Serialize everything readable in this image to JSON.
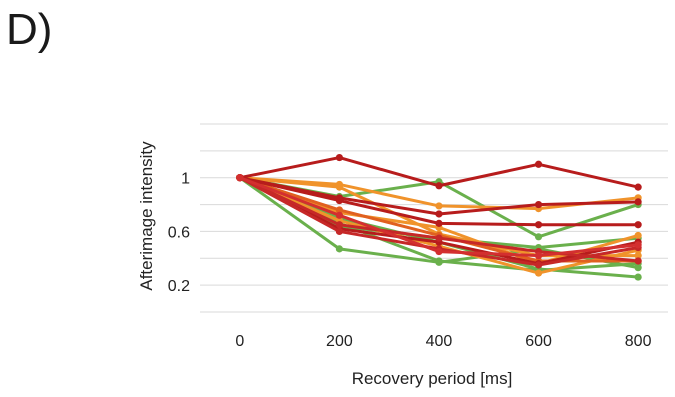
{
  "panel_label": "D)",
  "chart_data": {
    "type": "line",
    "title": "",
    "xlabel": "Recovery period [ms]",
    "ylabel": "Afterimage intensity",
    "x": [
      0,
      200,
      400,
      600,
      800
    ],
    "xticks": [
      "0",
      "200",
      "400",
      "600",
      "800"
    ],
    "yticks": [
      {
        "value": 0.2,
        "label": "0.2"
      },
      {
        "value": 0.6,
        "label": "0.6"
      },
      {
        "value": 1.0,
        "label": "1"
      }
    ],
    "xlim": [
      -80,
      860
    ],
    "ylim": [
      0.0,
      1.4
    ],
    "grid": true,
    "gridlines": [
      0.2,
      0.4,
      0.6,
      0.8,
      1.0,
      1.2,
      1.4
    ],
    "legend": "none",
    "series": [
      {
        "color": "#6ab04c",
        "values": [
          1.0,
          0.47,
          0.37,
          0.47,
          0.33
        ]
      },
      {
        "color": "#6ab04c",
        "values": [
          1.0,
          0.7,
          0.52,
          0.32,
          0.26
        ]
      },
      {
        "color": "#6ab04c",
        "values": [
          1.0,
          0.66,
          0.38,
          0.31,
          0.36
        ]
      },
      {
        "color": "#6ab04c",
        "values": [
          1.0,
          0.86,
          0.97,
          0.56,
          0.8
        ]
      },
      {
        "color": "#6ab04c",
        "values": [
          1.0,
          0.64,
          0.55,
          0.48,
          0.55
        ]
      },
      {
        "color": "#f0932b",
        "values": [
          1.0,
          0.95,
          0.79,
          0.77,
          0.85
        ]
      },
      {
        "color": "#f0932b",
        "values": [
          1.0,
          0.74,
          0.63,
          0.36,
          0.57
        ]
      },
      {
        "color": "#f0932b",
        "values": [
          1.0,
          0.68,
          0.49,
          0.29,
          0.46
        ]
      },
      {
        "color": "#f0932b",
        "values": [
          1.0,
          0.93,
          0.58,
          0.42,
          0.42
        ]
      },
      {
        "color": "#e06020",
        "values": [
          1.0,
          0.76,
          0.57,
          0.38,
          0.38
        ]
      },
      {
        "color": "#b71c1c",
        "values": [
          1.0,
          1.15,
          0.94,
          1.1,
          0.93
        ]
      },
      {
        "color": "#b71c1c",
        "values": [
          1.0,
          0.85,
          0.73,
          0.8,
          0.82
        ]
      },
      {
        "color": "#b71c1c",
        "values": [
          1.0,
          0.62,
          0.52,
          0.36,
          0.52
        ]
      },
      {
        "color": "#b71c1c",
        "values": [
          1.0,
          0.83,
          0.66,
          0.65,
          0.65
        ]
      },
      {
        "color": "#c62828",
        "values": [
          1.0,
          0.6,
          0.47,
          0.35,
          0.48
        ]
      },
      {
        "color": "#c62828",
        "values": [
          1.0,
          0.65,
          0.55,
          0.45,
          0.38
        ]
      },
      {
        "color": "#d32f2f",
        "values": [
          1.0,
          0.72,
          0.45,
          0.42,
          0.5
        ]
      }
    ]
  }
}
